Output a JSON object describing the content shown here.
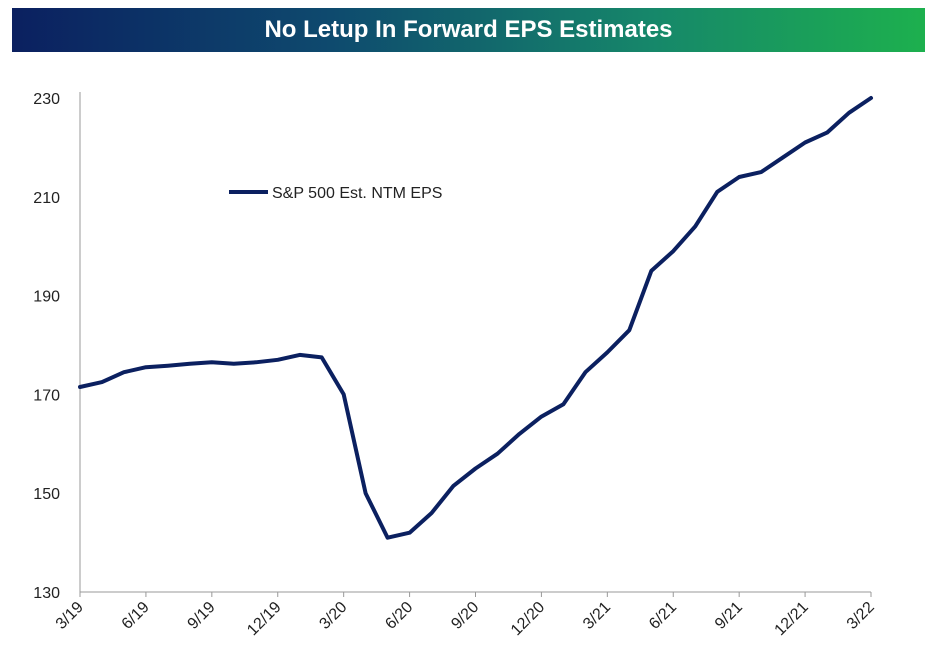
{
  "chart_data": {
    "type": "line",
    "title": "No Letup In Forward EPS Estimates",
    "xlabel": "",
    "ylabel": "",
    "ylim": [
      130,
      230
    ],
    "yticks": [
      130,
      150,
      170,
      190,
      210,
      230
    ],
    "xticks": [
      "3/19",
      "6/19",
      "9/19",
      "12/19",
      "3/20",
      "6/20",
      "9/20",
      "12/20",
      "3/21",
      "6/21",
      "9/21",
      "12/21",
      "3/22"
    ],
    "grid": false,
    "legend_position": "top-left",
    "colors": {
      "line": "#0b2060"
    },
    "series": [
      {
        "name": "S&P 500 Est. NTM EPS",
        "x": [
          "3/19",
          "4/19",
          "5/19",
          "6/19",
          "7/19",
          "8/19",
          "9/19",
          "10/19",
          "11/19",
          "12/19",
          "1/20",
          "2/20",
          "3/20",
          "4/20",
          "5/20",
          "6/20",
          "7/20",
          "8/20",
          "9/20",
          "10/20",
          "11/20",
          "12/20",
          "1/21",
          "2/21",
          "3/21",
          "4/21",
          "5/21",
          "6/21",
          "7/21",
          "8/21",
          "9/21",
          "10/21",
          "11/21",
          "12/21",
          "1/22",
          "2/22",
          "3/22"
        ],
        "values": [
          171.5,
          172.5,
          174.5,
          175.5,
          175.8,
          176.2,
          176.5,
          176.2,
          176.5,
          177.0,
          178.0,
          177.5,
          170.0,
          150.0,
          141.0,
          142.0,
          146.0,
          151.5,
          155.0,
          158.0,
          162.0,
          165.5,
          168.0,
          174.5,
          178.5,
          183.0,
          195.0,
          199.0,
          204.0,
          211.0,
          214.0,
          215.0,
          218.0,
          221.0,
          223.0,
          227.0,
          230.0
        ]
      }
    ]
  }
}
